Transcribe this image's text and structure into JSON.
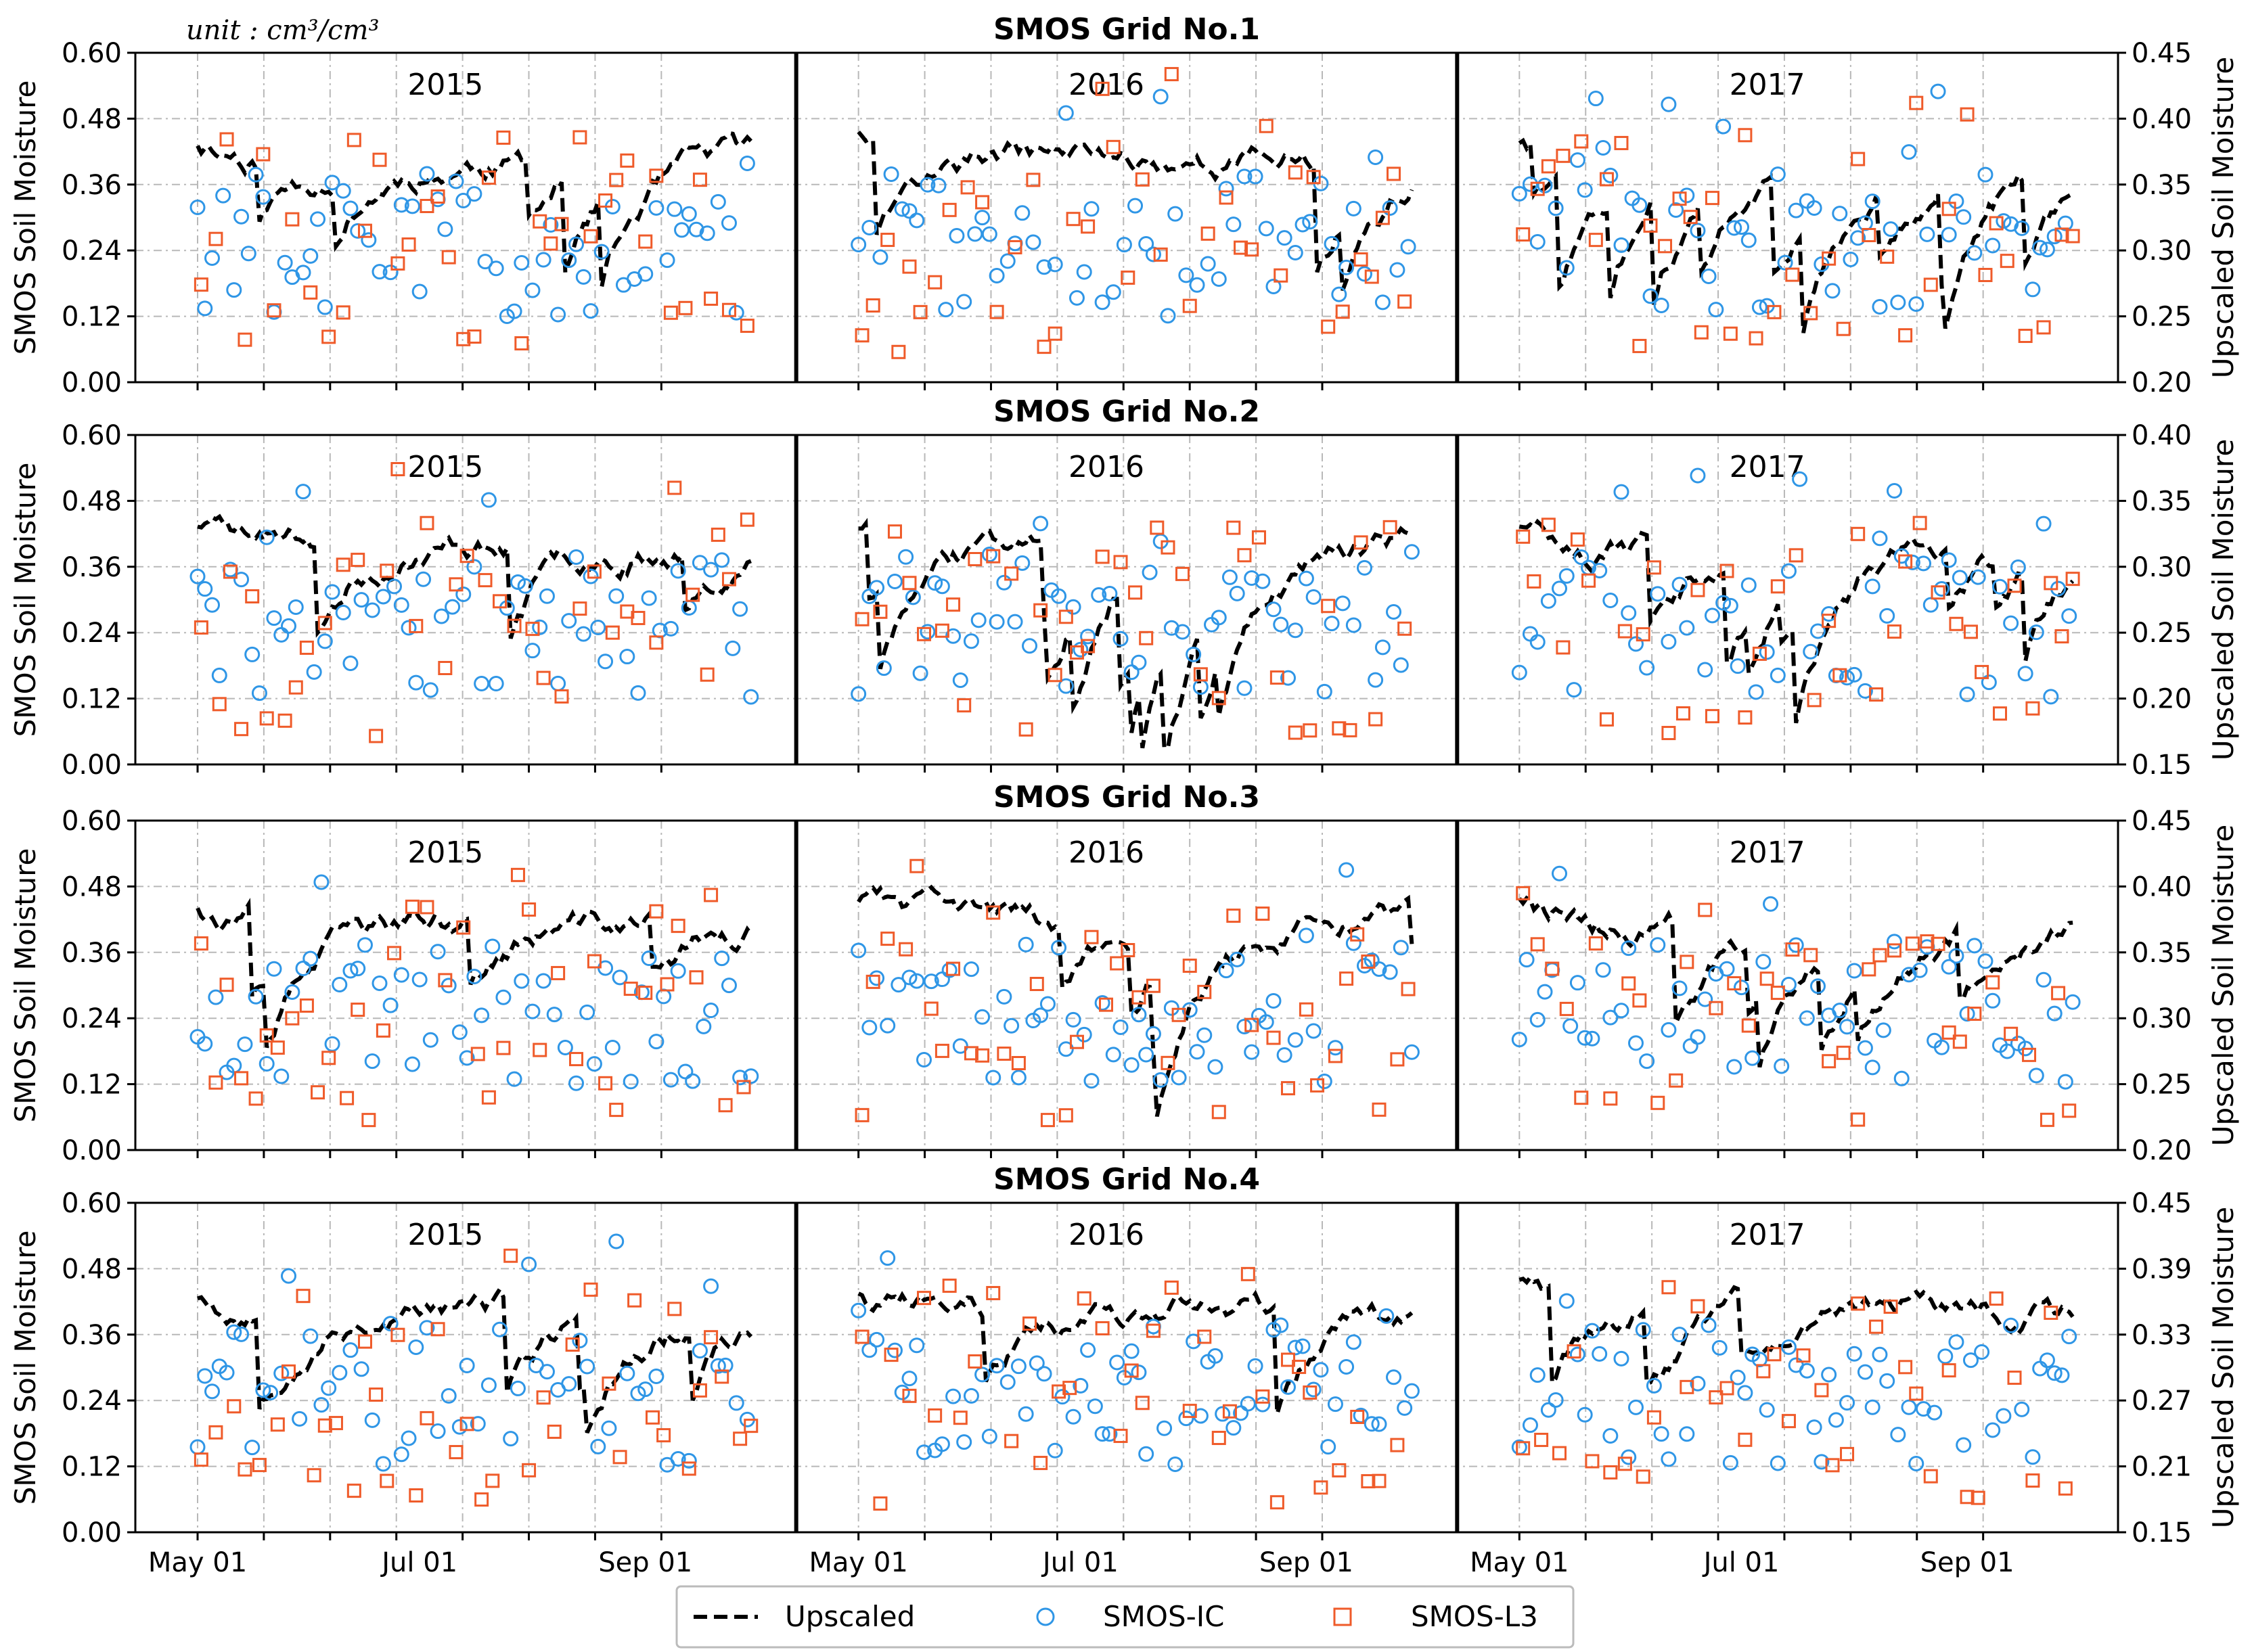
{
  "unit_label": "unit : cm³/cm³",
  "legend": {
    "upscaled": "Upscaled",
    "smos_ic": "SMOS-IC",
    "smos_l3": "SMOS-L3"
  },
  "colors": {
    "upscaled": "#000000",
    "smos_ic": "#2f96e6",
    "smos_l3": "#ef5b2a",
    "grid": "#b8b8b8"
  },
  "chart_data": [
    {
      "type": "line+scatter",
      "title": "SMOS Grid No.1",
      "ylabel_left": "SMOS Soil Moisture",
      "ylabel_right": "Upscaled Soil Moisture",
      "ylim_left": [
        0,
        0.6
      ],
      "yticks_left": [
        "0.00",
        "0.12",
        "0.24",
        "0.36",
        "0.48",
        "0.60"
      ],
      "ylim_right": [
        0.2,
        0.45
      ],
      "yticks_right": [
        "0.20",
        "0.25",
        "0.30",
        "0.35",
        "0.40",
        "0.45"
      ],
      "years": [
        "2015",
        "2016",
        "2017"
      ],
      "xticks": [
        "May 01",
        "Jul 01",
        "Sep 01"
      ],
      "seed": 11
    },
    {
      "type": "line+scatter",
      "title": "SMOS Grid No.2",
      "ylabel_left": "SMOS Soil Moisture",
      "ylabel_right": "Upscaled Soil Moisture",
      "ylim_left": [
        0,
        0.6
      ],
      "yticks_left": [
        "0.00",
        "0.12",
        "0.24",
        "0.36",
        "0.48",
        "0.60"
      ],
      "ylim_right": [
        0.15,
        0.4
      ],
      "yticks_right": [
        "0.15",
        "0.20",
        "0.25",
        "0.30",
        "0.35",
        "0.40"
      ],
      "years": [
        "2015",
        "2016",
        "2017"
      ],
      "xticks": [
        "May 01",
        "Jul 01",
        "Sep 01"
      ],
      "seed": 23
    },
    {
      "type": "line+scatter",
      "title": "SMOS Grid No.3",
      "ylabel_left": "SMOS Soil Moisture",
      "ylabel_right": "Upscaled Soil Moisture",
      "ylim_left": [
        0,
        0.6
      ],
      "yticks_left": [
        "0.00",
        "0.12",
        "0.24",
        "0.36",
        "0.48",
        "0.60"
      ],
      "ylim_right": [
        0.2,
        0.45
      ],
      "yticks_right": [
        "0.20",
        "0.25",
        "0.30",
        "0.35",
        "0.40",
        "0.45"
      ],
      "years": [
        "2015",
        "2016",
        "2017"
      ],
      "xticks": [
        "May 01",
        "Jul 01",
        "Sep 01"
      ],
      "seed": 37
    },
    {
      "type": "line+scatter",
      "title": "SMOS Grid No.4",
      "ylabel_left": "SMOS Soil Moisture",
      "ylabel_right": "Upscaled Soil Moisture",
      "ylim_left": [
        0,
        0.6
      ],
      "yticks_left": [
        "0.00",
        "0.12",
        "0.24",
        "0.36",
        "0.48",
        "0.60"
      ],
      "ylim_right": [
        0.15,
        0.45
      ],
      "yticks_right": [
        "0.15",
        "0.21",
        "0.27",
        "0.33",
        "0.39",
        "0.45"
      ],
      "years": [
        "2015",
        "2016",
        "2017"
      ],
      "xticks": [
        "May 01",
        "Jul 01",
        "Sep 01"
      ],
      "seed": 53
    }
  ]
}
